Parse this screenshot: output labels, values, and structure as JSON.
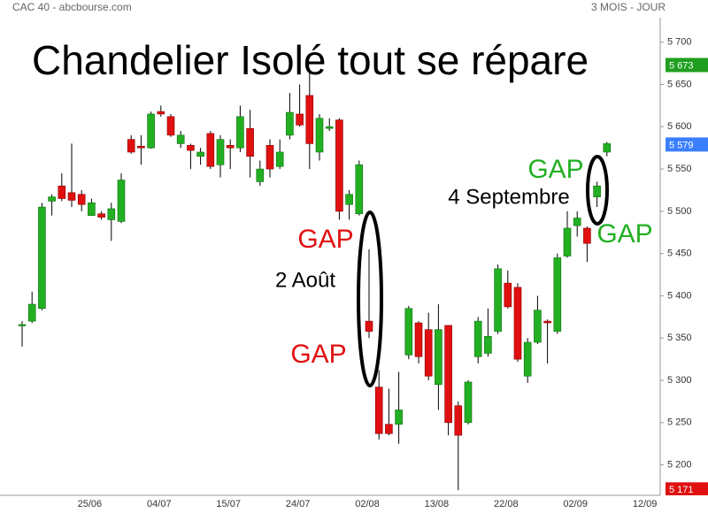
{
  "chart_data": {
    "type": "candlestick",
    "source": "CAC 40 - abcbourse.com",
    "period": "3 MOIS - JOUR",
    "title": "Chandelier Isolé tout se répare",
    "up_color": "#22b022",
    "down_color": "#e01010",
    "categories": [
      null,
      null,
      null,
      null,
      null,
      null,
      null,
      "25/06",
      null,
      null,
      null,
      null,
      null,
      null,
      "04/07",
      null,
      null,
      null,
      null,
      null,
      null,
      "15/07",
      null,
      null,
      null,
      null,
      null,
      null,
      "24/07",
      null,
      null,
      null,
      null,
      null,
      null,
      "02/08",
      null,
      null,
      null,
      null,
      null,
      null,
      "13/08",
      null,
      null,
      null,
      null,
      null,
      null,
      "22/08",
      null,
      null,
      null,
      null,
      null,
      null,
      "02/09",
      null,
      null,
      null,
      null,
      null,
      null,
      "12/09"
    ],
    "open": [
      5365,
      5370,
      5385,
      5512,
      5530,
      5522,
      5520,
      5495,
      5497,
      5490,
      5488,
      5585,
      5577,
      5575,
      5618,
      5612,
      5580,
      5578,
      5565,
      5592,
      5555,
      5578,
      5575,
      5598,
      5535,
      5578,
      5553,
      5590,
      5615,
      5637,
      5570,
      5598,
      5608,
      5508,
      5497,
      5370,
      5292,
      5248,
      5248,
      5330,
      5368,
      5360,
      5295,
      5365,
      5270,
      5250,
      5328,
      5332,
      5358,
      5415,
      5410,
      5305,
      5345,
      5370,
      5358,
      5447,
      5483,
      5480,
      5517,
      5570,
      null,
      null,
      null,
      null
    ],
    "high": [
      5370,
      5405,
      5510,
      5520,
      5545,
      5580,
      5525,
      5515,
      5500,
      5510,
      5545,
      5590,
      5590,
      5618,
      5625,
      5615,
      5595,
      5580,
      5575,
      5595,
      5590,
      5585,
      5625,
      5620,
      5560,
      5585,
      5585,
      5640,
      5650,
      5665,
      5615,
      5610,
      5610,
      5525,
      5560,
      5455,
      5312,
      5290,
      5310,
      5388,
      5370,
      5380,
      5390,
      5365,
      5275,
      5300,
      5375,
      5385,
      5437,
      5430,
      5415,
      5350,
      5400,
      5372,
      5450,
      5500,
      5500,
      5482,
      5535,
      5582,
      null,
      null,
      null,
      null
    ],
    "low": [
      5340,
      5368,
      5383,
      5495,
      5512,
      5505,
      5500,
      5495,
      5490,
      5465,
      5486,
      5568,
      5555,
      5574,
      5612,
      5588,
      5575,
      5550,
      5555,
      5550,
      5540,
      5550,
      5570,
      5540,
      5530,
      5540,
      5550,
      5585,
      5600,
      5550,
      5560,
      5595,
      5490,
      5490,
      5495,
      5350,
      5230,
      5235,
      5225,
      5325,
      5320,
      5300,
      5265,
      5235,
      5170,
      5248,
      5320,
      5328,
      5355,
      5385,
      5322,
      5297,
      5343,
      5320,
      5355,
      5445,
      5470,
      5440,
      5505,
      5565,
      null,
      null,
      null,
      null
    ],
    "close": [
      5366,
      5390,
      5505,
      5517,
      5515,
      5513,
      5508,
      5510,
      5493,
      5503,
      5537,
      5570,
      5575,
      5615,
      5615,
      5590,
      5590,
      5572,
      5570,
      5553,
      5585,
      5575,
      5612,
      5565,
      5550,
      5550,
      5570,
      5617,
      5602,
      5580,
      5610,
      5600,
      5500,
      5520,
      5555,
      5358,
      5237,
      5237,
      5265,
      5385,
      5328,
      5305,
      5360,
      5250,
      5235,
      5298,
      5370,
      5352,
      5432,
      5387,
      5325,
      5345,
      5383,
      5368,
      5445,
      5480,
      5492,
      5462,
      5530,
      5580,
      null,
      null,
      null,
      null
    ],
    "ylim": [
      5164,
      5729
    ],
    "yticks": [
      {
        "value": 5200,
        "label": "5 200"
      },
      {
        "value": 5250,
        "label": "5 250"
      },
      {
        "value": 5300,
        "label": "5 300"
      },
      {
        "value": 5350,
        "label": "5 350"
      },
      {
        "value": 5400,
        "label": "5 400"
      },
      {
        "value": 5450,
        "label": "5 450"
      },
      {
        "value": 5500,
        "label": "5 500"
      },
      {
        "value": 5550,
        "label": "5 550"
      },
      {
        "value": 5600,
        "label": "5 600"
      },
      {
        "value": 5650,
        "label": "5 650"
      },
      {
        "value": 5700,
        "label": "5 700"
      }
    ],
    "price_labels": [
      {
        "value": 5673,
        "label": "5 673",
        "color": "#1f9e1f"
      },
      {
        "value": 5579,
        "label": "5 579",
        "color": "#3b7fff"
      },
      {
        "value": 5171,
        "label": "5 171",
        "color": "#e01010"
      }
    ],
    "annotations": [
      {
        "text": "GAP",
        "color": "#e01010"
      },
      {
        "text": "2 Août",
        "color": "#000000"
      },
      {
        "text": "GAP",
        "color": "#e01010"
      },
      {
        "text": "GAP",
        "color": "#22b022"
      },
      {
        "text": "4 Septembre",
        "color": "#000000"
      },
      {
        "text": "GAP",
        "color": "#22b022"
      }
    ]
  }
}
